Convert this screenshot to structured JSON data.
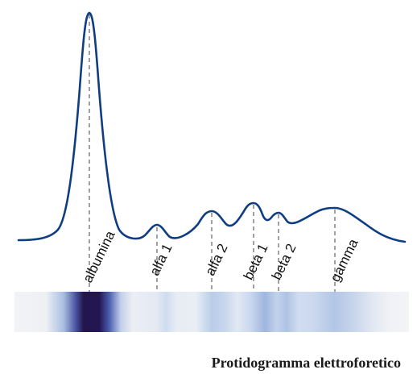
{
  "caption": "Protidogramma elettroforetico",
  "fractions": [
    {
      "name": "albumina"
    },
    {
      "name": "alfa 1"
    },
    {
      "name": "alfa 2"
    },
    {
      "name": "beta 1"
    },
    {
      "name": "beta 2"
    },
    {
      "name": "gamma"
    }
  ],
  "colors": {
    "curve": "#0f3d82",
    "band_light": "#f2f3f6",
    "band_medium": "#a9bedf",
    "band_dark": "#241651",
    "guide_lines": "#555555"
  }
}
